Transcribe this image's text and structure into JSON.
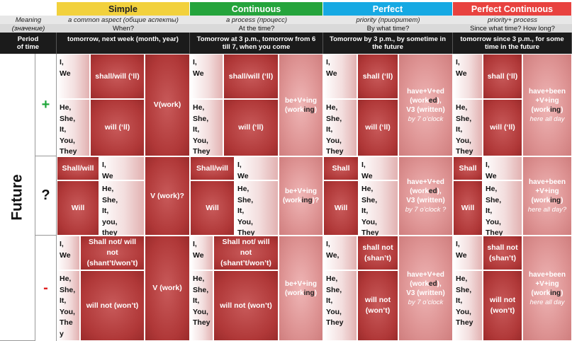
{
  "headers": {
    "simple": "Simple",
    "continuous": "Continuous",
    "perfect": "Perfect",
    "perfect_continuous": "Perfect Continuous",
    "colors": {
      "simple": "#f2d13d",
      "continuous": "#25a43c",
      "perfect": "#16a9e3",
      "perfect_continuous": "#e8423f"
    }
  },
  "labels": {
    "meaning": "Meaning",
    "meaning_ru": "(значение)",
    "period_1": "Period",
    "period_2": "of time",
    "future": "Future",
    "plus": "+",
    "question": "?",
    "minus": "-"
  },
  "meaning": {
    "simple": "a common aspect (общие аспекты)",
    "continuous": "a process (процесс)",
    "perfect": "priority (приоритет)",
    "perfect_continuous": "priority+ process"
  },
  "question_words": {
    "simple": "When?",
    "continuous": "At the time?",
    "perfect": "By what time?",
    "perfect_continuous": "Since what time? How long?"
  },
  "period": {
    "simple": "tomorrow, next week (month, year)",
    "continuous": "Tomorrow at 3 p.m., tomorrow from 6 till 7, when you come",
    "perfect": "Tomorrow by 3 p.m., by sometime in the future",
    "perfect_continuous": "tomorrow since 3 p.m., for some time in the future"
  },
  "pron": {
    "iwe": "I,\nWe",
    "iwe_comma": "I,\nWe,",
    "he_they": "He,\nShe,\nIt,\nYou,\nThey",
    "he_they_lower": "He,\nShe,\nIt,\nyou,\nthey",
    "he_they_split": "He,\nShe,\nIt,\nYou,\nThe\ny"
  },
  "aux": {
    "shall_will_ll": "shall/will (‘ll)",
    "shall_ll": "shall (‘ll)",
    "will_ll": "will (‘ll)",
    "shall_will_q": "Shall/will",
    "shall_q": "Shall",
    "will_q": "Will",
    "shall_not_will_not": "Shall not/ will not (shant’t/won’t)",
    "shall_not": "shall not (shan’t)",
    "will_not": "will not (won’t)"
  },
  "forms": {
    "v_work": "V(work)",
    "v_work_q": "V (work)?",
    "v_work_neg": "V (work)",
    "be_ving_1": "be+V+ing",
    "be_ving_2a": "(wor",
    "be_ving_2b": "k",
    "be_ving_2c": "ing",
    "be_ving_2d": ")",
    "be_ving_q_2d": ")?",
    "have_ved_1": "have+V+ed",
    "have_ved_2a": "(work",
    "have_ved_2b": "ed",
    "have_ved_2c": "),",
    "have_ved_3": "V3 (written)",
    "have_ved_ex": "by 7 o’clock",
    "have_ved_ex_q": "by 7 o’clock ?",
    "hbv_1": "have+been",
    "hbv_2": "+V+ing",
    "hbv_3a": "(work",
    "hbv_3b": "ing",
    "hbv_3c": ")",
    "hbv_ex": "here all day",
    "hbv_ex_q": "here all day?"
  }
}
